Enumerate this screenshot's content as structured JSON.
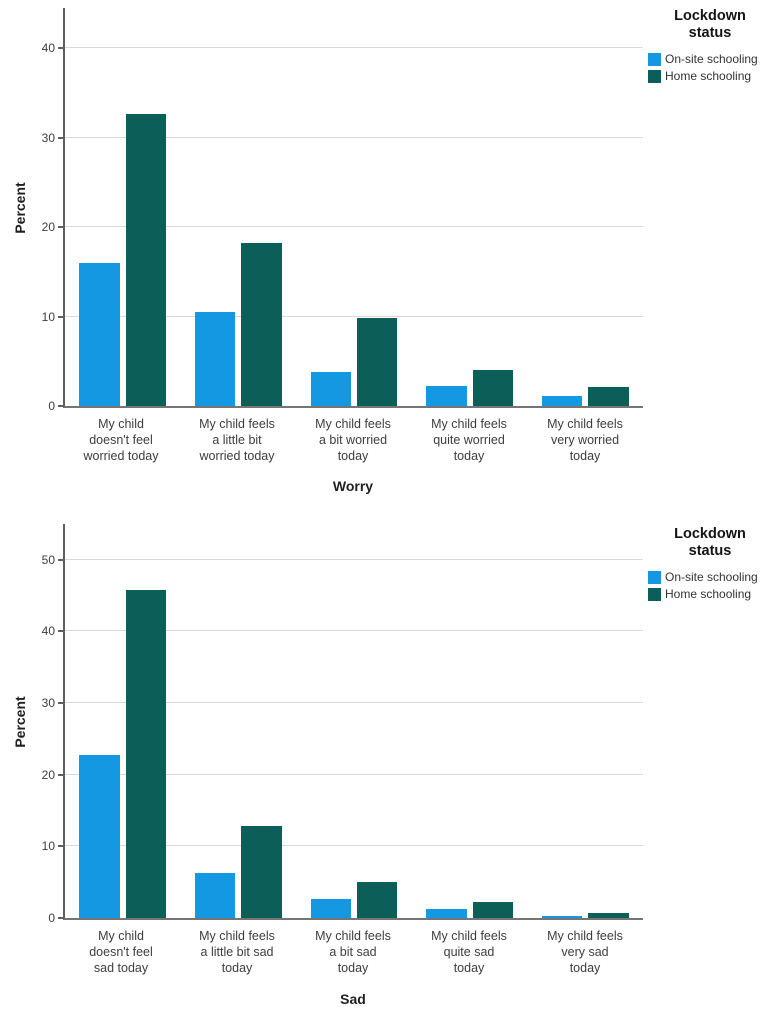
{
  "colors": {
    "onsite_blue": "#1598E2",
    "home_teal": "#0C5F58",
    "gridline": "#D9D9D9",
    "axis_line": "#5E5E5E",
    "tick_text": "#3D3D3D",
    "title_text": "#1F1F1F"
  },
  "legend": {
    "title_line1": "Lockdown",
    "title_line2": "status",
    "items": [
      {
        "label": "On-site schooling",
        "color": "#1598E2"
      },
      {
        "label": "Home schooling",
        "color": "#0C5F58"
      }
    ]
  },
  "chart_data": [
    {
      "type": "bar",
      "title": "",
      "xlabel": "Worry",
      "ylabel": "Percent",
      "ylim": [
        0,
        44.5
      ],
      "yticks": [
        0,
        10,
        20,
        30,
        40
      ],
      "grid": "horizontal",
      "legend_position": "top-right-outside",
      "categories": [
        [
          "My child",
          "doesn't feel",
          "worried today"
        ],
        [
          "My child feels",
          "a little bit",
          "worried today"
        ],
        [
          "My child feels",
          "a bit worried",
          "today"
        ],
        [
          "My child feels",
          "quite worried",
          "today"
        ],
        [
          "My child feels",
          "very worried",
          "today"
        ]
      ],
      "series": [
        {
          "name": "On-site schooling",
          "color": "#1598E2",
          "values": [
            16.0,
            10.5,
            3.8,
            2.2,
            1.1
          ]
        },
        {
          "name": "Home schooling",
          "color": "#0C5F58",
          "values": [
            32.7,
            18.2,
            9.8,
            4.0,
            2.1
          ]
        }
      ]
    },
    {
      "type": "bar",
      "title": "",
      "xlabel": "Sad",
      "ylabel": "Percent",
      "ylim": [
        0,
        55
      ],
      "yticks": [
        0,
        10,
        20,
        30,
        40,
        50
      ],
      "grid": "horizontal",
      "legend_position": "top-right-outside",
      "categories": [
        [
          "My child",
          "doesn't feel",
          "sad today"
        ],
        [
          "My child feels",
          "a little bit sad",
          "today"
        ],
        [
          "My child feels",
          "a bit sad",
          "today"
        ],
        [
          "My child feels",
          "quite sad",
          "today"
        ],
        [
          "My child feels",
          "very sad",
          "today"
        ]
      ],
      "series": [
        {
          "name": "On-site schooling",
          "color": "#1598E2",
          "values": [
            22.8,
            6.3,
            2.7,
            1.2,
            0.3
          ]
        },
        {
          "name": "Home schooling",
          "color": "#0C5F58",
          "values": [
            45.8,
            12.8,
            5.0,
            2.3,
            0.7
          ]
        }
      ]
    }
  ]
}
